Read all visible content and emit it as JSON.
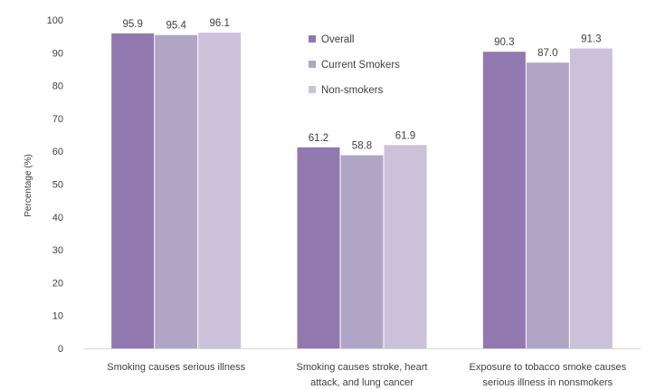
{
  "chart_data": {
    "type": "bar",
    "title": "",
    "xlabel": "",
    "ylabel": "Percentage (%)",
    "ylim": [
      0,
      100
    ],
    "ytick_step": 10,
    "grid": false,
    "legend_position": "top-center",
    "categories": [
      [
        "Smoking causes serious illness"
      ],
      [
        "Smoking causes stroke, heart",
        "attack, and lung cancer"
      ],
      [
        "Exposure to tobacco smoke causes",
        "serious illness in nonsmokers"
      ]
    ],
    "series": [
      {
        "name": "Overall",
        "color": "#9178AE",
        "values": [
          95.9,
          61.2,
          90.3
        ],
        "labels": [
          "95.9",
          "61.2",
          "90.3"
        ]
      },
      {
        "name": "Current Smokers",
        "color": "#B1A5C6",
        "values": [
          95.4,
          58.8,
          87.0
        ],
        "labels": [
          "95.4",
          "58.8",
          "87.0"
        ]
      },
      {
        "name": "Non-smokers",
        "color": "#CBC2DA",
        "values": [
          96.1,
          61.9,
          91.3
        ],
        "labels": [
          "96.1",
          "61.9",
          "91.3"
        ]
      }
    ]
  }
}
